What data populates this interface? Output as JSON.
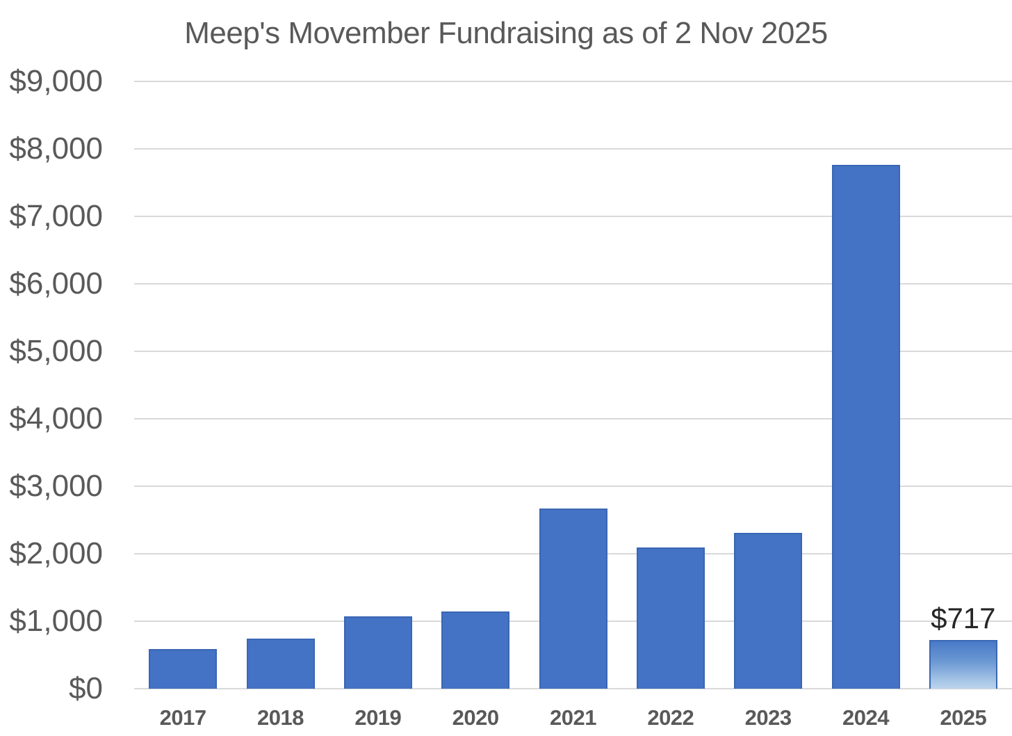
{
  "title": "Meep's Movember Fundraising as of 2 Nov 2025",
  "chart_data": {
    "type": "bar",
    "title": "Meep's Movember Fundraising as of 2 Nov 2025",
    "categories": [
      "2017",
      "2018",
      "2019",
      "2020",
      "2021",
      "2022",
      "2023",
      "2024",
      "2025"
    ],
    "values": [
      590,
      745,
      1075,
      1145,
      2670,
      2090,
      2310,
      7765,
      717
    ],
    "xlabel": "",
    "ylabel": "",
    "ylim": [
      0,
      9000
    ],
    "ytick_step": 1000,
    "ytick_labels": [
      "$0",
      "$1,000",
      "$2,000",
      "$3,000",
      "$4,000",
      "$5,000",
      "$6,000",
      "$7,000",
      "$8,000",
      "$9,000"
    ],
    "grid": true,
    "legend": false,
    "data_labels": [
      {
        "index": 8,
        "text": "$717"
      }
    ],
    "highlight": {
      "index": 8,
      "style": "gradient-fade-to-light-bottom"
    },
    "colors": {
      "bar_fill": "#4472C4",
      "bar_border": "#3A66B3",
      "highlight_gradient_top": "#4879C7",
      "highlight_gradient_bottom": "#BDD3EC",
      "gridline": "#D9D9D9",
      "axis_text": "#595959",
      "title_text": "#595959",
      "data_label_text": "#262626",
      "background": "#FFFFFF"
    }
  }
}
